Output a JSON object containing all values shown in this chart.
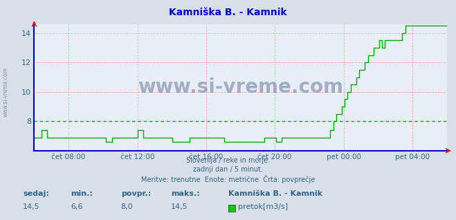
{
  "title": "Kamniška B. - Kamnik",
  "title_color": "#0000cc",
  "bg_color": "#d8dfe8",
  "plot_bg_color": "#e8eef5",
  "grid_color": "#ffaaaa",
  "line_color": "#00aa00",
  "avg_line_color": "#00aa00",
  "avg_value": 8.0,
  "x_label_color": "#336688",
  "y_label_color": "#336688",
  "axis_color_bottom": "#0000cc",
  "axis_color_left": "#0000cc",
  "watermark": "www.si-vreme.com",
  "watermark_color": "#1a3a6a",
  "watermark_alpha": 0.35,
  "footer_line1": "Slovenija / reke in morje.",
  "footer_line2": "zadnji dan / 5 minut.",
  "footer_line3": "Meritve: trenutne  Enote: metrične  Črta: povprečje",
  "footer_color": "#336688",
  "stats_labels": [
    "sedaj:",
    "min.:",
    "povpr.:",
    "maks.:"
  ],
  "stats_values": [
    "14,5",
    "6,6",
    "8,0",
    "14,5"
  ],
  "legend_label": "Kamniška B. - Kamnik",
  "legend_unit": "pretok[m3/s]",
  "legend_color": "#00cc00",
  "ylim": [
    6.0,
    14.6
  ],
  "yticks": [
    8,
    10,
    12,
    14
  ],
  "x_tick_labels": [
    "čet 08:00",
    "čet 12:00",
    "čet 16:00",
    "čet 20:00",
    "pet 00:00",
    "pet 04:00"
  ],
  "x_tick_positions": [
    0.083,
    0.25,
    0.417,
    0.583,
    0.75,
    0.917
  ],
  "data_y": [
    6.9,
    6.9,
    6.9,
    6.9,
    6.9,
    7.4,
    7.4,
    7.4,
    7.4,
    6.9,
    6.9,
    6.9,
    6.9,
    6.9,
    6.9,
    6.9,
    6.9,
    6.9,
    6.9,
    6.9,
    6.9,
    6.9,
    6.9,
    6.9,
    6.9,
    6.9,
    6.9,
    6.9,
    6.9,
    6.9,
    6.9,
    6.9,
    6.9,
    6.9,
    6.9,
    6.9,
    6.9,
    6.9,
    6.9,
    6.9,
    6.9,
    6.9,
    6.9,
    6.9,
    6.9,
    6.9,
    6.9,
    6.9,
    6.9,
    6.9,
    6.6,
    6.6,
    6.6,
    6.6,
    6.9,
    6.9,
    6.9,
    6.9,
    6.9,
    6.9,
    6.9,
    6.9,
    6.9,
    6.9,
    6.9,
    6.9,
    6.9,
    6.9,
    6.9,
    6.9,
    6.9,
    6.9,
    7.4,
    7.4,
    7.4,
    7.4,
    6.9,
    6.9,
    6.9,
    6.9,
    6.9,
    6.9,
    6.9,
    6.9,
    6.9,
    6.9,
    6.9,
    6.9,
    6.9,
    6.9,
    6.9,
    6.9,
    6.9,
    6.9,
    6.9,
    6.9,
    6.6,
    6.6,
    6.6,
    6.6,
    6.6,
    6.6,
    6.6,
    6.6,
    6.6,
    6.6,
    6.6,
    6.6,
    6.9,
    6.9,
    6.9,
    6.9,
    6.9,
    6.9,
    6.9,
    6.9,
    6.9,
    6.9,
    6.9,
    6.9,
    6.9,
    6.9,
    6.9,
    6.9,
    6.9,
    6.9,
    6.9,
    6.9,
    6.9,
    6.9,
    6.9,
    6.9,
    6.6,
    6.6,
    6.6,
    6.6,
    6.6,
    6.6,
    6.6,
    6.6,
    6.6,
    6.6,
    6.6,
    6.6,
    6.6,
    6.6,
    6.6,
    6.6,
    6.6,
    6.6,
    6.6,
    6.6,
    6.6,
    6.6,
    6.6,
    6.6,
    6.6,
    6.6,
    6.6,
    6.6,
    6.9,
    6.9,
    6.9,
    6.9,
    6.9,
    6.9,
    6.9,
    6.9,
    6.6,
    6.6,
    6.6,
    6.6,
    6.9,
    6.9,
    6.9,
    6.9,
    6.9,
    6.9,
    6.9,
    6.9,
    6.9,
    6.9,
    6.9,
    6.9,
    6.9,
    6.9,
    6.9,
    6.9,
    6.9,
    6.9,
    6.9,
    6.9,
    6.9,
    6.9,
    6.9,
    6.9,
    6.9,
    6.9,
    6.9,
    6.9,
    6.9,
    6.9,
    6.9,
    6.9,
    6.9,
    6.9,
    7.4,
    7.4,
    8.0,
    8.0,
    8.5,
    8.5,
    8.5,
    8.5,
    9.0,
    9.0,
    9.5,
    9.5,
    10.0,
    10.0,
    10.5,
    10.5,
    10.5,
    10.5,
    11.0,
    11.0,
    11.5,
    11.5,
    11.5,
    11.5,
    12.0,
    12.0,
    12.5,
    12.5,
    12.5,
    12.5,
    13.0,
    13.0,
    13.0,
    13.0,
    13.5,
    13.5,
    13.0,
    13.0,
    13.5,
    13.5,
    13.5,
    13.5,
    13.5,
    13.5,
    13.5,
    13.5,
    13.5,
    13.5,
    13.5,
    13.5,
    14.0,
    14.0,
    14.5,
    14.5,
    14.5,
    14.5,
    14.5,
    14.5,
    14.5,
    14.5,
    14.5,
    14.5,
    14.5,
    14.5,
    14.5,
    14.5,
    14.5,
    14.5,
    14.5,
    14.5,
    14.5,
    14.5,
    14.5,
    14.5,
    14.5,
    14.5,
    14.5,
    14.5,
    14.5,
    14.5,
    14.5,
    14.5
  ]
}
